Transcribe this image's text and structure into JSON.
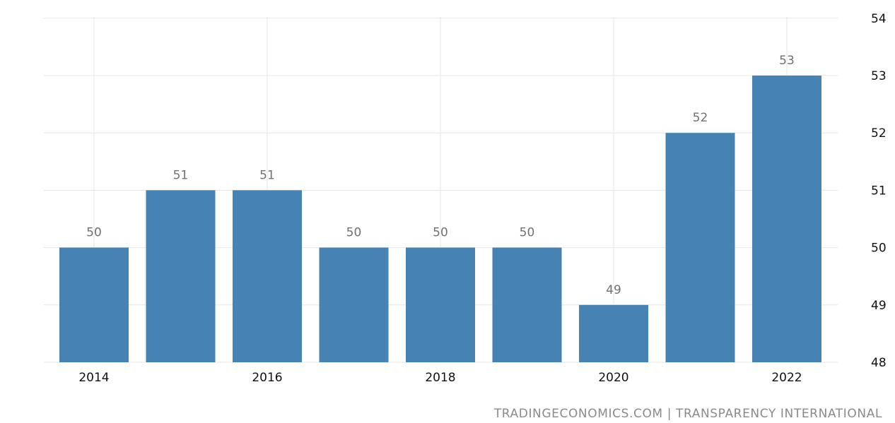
{
  "chart_data": {
    "type": "bar",
    "categories": [
      "2014",
      "2015",
      "2016",
      "2017",
      "2018",
      "2019",
      "2020",
      "2021",
      "2022"
    ],
    "values": [
      50,
      51,
      51,
      50,
      50,
      50,
      49,
      52,
      53
    ],
    "x_tick_labels": [
      "2014",
      "2016",
      "2018",
      "2020",
      "2022"
    ],
    "y_tick_labels": [
      48,
      49,
      50,
      51,
      52,
      53,
      54
    ],
    "ylim": [
      48,
      54
    ],
    "title": "",
    "xlabel": "",
    "ylabel": "",
    "grid": true,
    "y_axis_position": "right",
    "data_labels": true,
    "bar_color": "#4682b4"
  },
  "source": "TRADINGECONOMICS.COM | TRANSPARENCY INTERNATIONAL"
}
